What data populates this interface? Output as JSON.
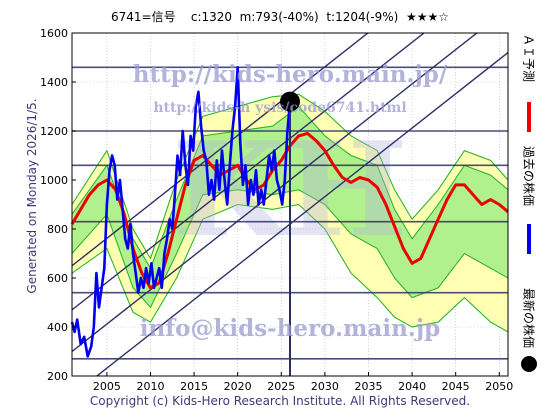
{
  "header": {
    "code": "6741=信号",
    "current": "c:1320",
    "minimum": "m:793(-40%)",
    "target": "t:1204(-9%)",
    "stars": "★★★☆"
  },
  "side_caption": "Generated on Monday 2026/1/5.",
  "footer": "Copyright (c) Kids-Hero Research Institute. All Rights Reserved.",
  "watermarks": {
    "url_top": "http://kids-hero.main.jp/",
    "url_mid": "http://kids-h     ysis/code6741.html",
    "email": "info@kids-hero.main.jp",
    "big_text": "KH"
  },
  "legend": {
    "ai_forecast": "ＡＩ予測",
    "past_price": "過去の株価",
    "latest_price": "最新の株価"
  },
  "colors": {
    "past_price": "#0000ee",
    "ai_forecast": "#ee0000",
    "latest_marker": "#000000",
    "band_outer": "#ffffb0",
    "band_inner": "#a8f08a",
    "band_lines": "#2ab52a",
    "trend_lines": "#2e2e66",
    "horizontal_lines": "#2e2e66",
    "grid": "#b8b8b8",
    "watermark": "#9a9ad0"
  },
  "chart_data": {
    "type": "line",
    "xlim": [
      2001,
      2051
    ],
    "ylim": [
      200,
      1600
    ],
    "x_ticks": [
      2005,
      2010,
      2015,
      2020,
      2025,
      2030,
      2035,
      2040,
      2045,
      2050
    ],
    "y_ticks": [
      200,
      400,
      600,
      800,
      1000,
      1200,
      1400,
      1600
    ],
    "grid": true,
    "latest": {
      "x": 2026.0,
      "y": 1320
    },
    "current_time_x": 2026.0,
    "horizontal_levels": [
      1460,
      1200,
      1060,
      830,
      540,
      270
    ],
    "trend_lines": [
      {
        "x1": 2001,
        "y1": 650,
        "x2": 2051,
        "y2": 2050
      },
      {
        "x1": 2001,
        "y1": 470,
        "x2": 2051,
        "y2": 1870
      },
      {
        "x1": 2001,
        "y1": 300,
        "x2": 2051,
        "y2": 1700
      },
      {
        "x1": 2001,
        "y1": 120,
        "x2": 2051,
        "y2": 1520
      }
    ],
    "series": [
      {
        "name": "過去の株価",
        "points": [
          [
            2001.0,
            420
          ],
          [
            2001.3,
            380
          ],
          [
            2001.6,
            430
          ],
          [
            2002.0,
            330
          ],
          [
            2002.4,
            360
          ],
          [
            2002.8,
            280
          ],
          [
            2003.2,
            320
          ],
          [
            2003.5,
            400
          ],
          [
            2003.8,
            620
          ],
          [
            2004.1,
            480
          ],
          [
            2004.4,
            560
          ],
          [
            2004.7,
            640
          ],
          [
            2005.0,
            900
          ],
          [
            2005.3,
            1040
          ],
          [
            2005.6,
            1100
          ],
          [
            2005.9,
            1060
          ],
          [
            2006.2,
            920
          ],
          [
            2006.5,
            1000
          ],
          [
            2006.8,
            880
          ],
          [
            2007.1,
            760
          ],
          [
            2007.4,
            720
          ],
          [
            2007.7,
            820
          ],
          [
            2008.0,
            700
          ],
          [
            2008.3,
            620
          ],
          [
            2008.6,
            540
          ],
          [
            2008.9,
            600
          ],
          [
            2009.2,
            560
          ],
          [
            2009.5,
            640
          ],
          [
            2009.8,
            580
          ],
          [
            2010.1,
            660
          ],
          [
            2010.4,
            560
          ],
          [
            2010.7,
            600
          ],
          [
            2011.0,
            640
          ],
          [
            2011.3,
            560
          ],
          [
            2011.6,
            700
          ],
          [
            2011.9,
            760
          ],
          [
            2012.2,
            840
          ],
          [
            2012.5,
            800
          ],
          [
            2012.8,
            940
          ],
          [
            2013.1,
            1100
          ],
          [
            2013.4,
            1020
          ],
          [
            2013.7,
            1200
          ],
          [
            2014.0,
            1060
          ],
          [
            2014.3,
            980
          ],
          [
            2014.6,
            1180
          ],
          [
            2014.9,
            1120
          ],
          [
            2015.2,
            1300
          ],
          [
            2015.5,
            1360
          ],
          [
            2015.8,
            1220
          ],
          [
            2016.1,
            1120
          ],
          [
            2016.4,
            1080
          ],
          [
            2016.7,
            940
          ],
          [
            2017.0,
            1000
          ],
          [
            2017.3,
            920
          ],
          [
            2017.6,
            1080
          ],
          [
            2017.9,
            960
          ],
          [
            2018.2,
            1120
          ],
          [
            2018.5,
            1000
          ],
          [
            2018.8,
            900
          ],
          [
            2019.1,
            1060
          ],
          [
            2019.4,
            1200
          ],
          [
            2019.7,
            1300
          ],
          [
            2020.0,
            1460
          ],
          [
            2020.3,
            1150
          ],
          [
            2020.6,
            980
          ],
          [
            2020.9,
            1060
          ],
          [
            2021.2,
            900
          ],
          [
            2021.5,
            1000
          ],
          [
            2021.8,
            940
          ],
          [
            2022.1,
            1040
          ],
          [
            2022.4,
            900
          ],
          [
            2022.7,
            960
          ],
          [
            2023.0,
            900
          ],
          [
            2023.3,
            1000
          ],
          [
            2023.6,
            1100
          ],
          [
            2023.9,
            1040
          ],
          [
            2024.2,
            1120
          ],
          [
            2024.5,
            1000
          ],
          [
            2024.8,
            960
          ],
          [
            2025.1,
            900
          ],
          [
            2025.4,
            1000
          ],
          [
            2025.7,
            1200
          ],
          [
            2026.0,
            1320
          ]
        ]
      },
      {
        "name": "ＡＩ予測",
        "points": [
          [
            2001.0,
            820
          ],
          [
            2002.0,
            880
          ],
          [
            2003.0,
            940
          ],
          [
            2004.0,
            980
          ],
          [
            2005.0,
            1000
          ],
          [
            2006.0,
            960
          ],
          [
            2007.0,
            860
          ],
          [
            2008.0,
            720
          ],
          [
            2009.0,
            620
          ],
          [
            2010.0,
            560
          ],
          [
            2011.0,
            580
          ],
          [
            2012.0,
            700
          ],
          [
            2013.0,
            840
          ],
          [
            2014.0,
            980
          ],
          [
            2015.0,
            1080
          ],
          [
            2016.0,
            1100
          ],
          [
            2017.0,
            1060
          ],
          [
            2018.0,
            1020
          ],
          [
            2019.0,
            1040
          ],
          [
            2020.0,
            1060
          ],
          [
            2021.0,
            1000
          ],
          [
            2022.0,
            960
          ],
          [
            2023.0,
            980
          ],
          [
            2024.0,
            1040
          ],
          [
            2025.0,
            1080
          ],
          [
            2026.0,
            1140
          ],
          [
            2027.0,
            1180
          ],
          [
            2028.0,
            1190
          ],
          [
            2029.0,
            1160
          ],
          [
            2030.0,
            1120
          ],
          [
            2031.0,
            1060
          ],
          [
            2032.0,
            1010
          ],
          [
            2033.0,
            990
          ],
          [
            2034.0,
            1010
          ],
          [
            2035.0,
            1000
          ],
          [
            2036.0,
            970
          ],
          [
            2037.0,
            900
          ],
          [
            2038.0,
            810
          ],
          [
            2039.0,
            720
          ],
          [
            2040.0,
            660
          ],
          [
            2041.0,
            680
          ],
          [
            2042.0,
            760
          ],
          [
            2043.0,
            840
          ],
          [
            2044.0,
            920
          ],
          [
            2045.0,
            980
          ],
          [
            2046.0,
            980
          ],
          [
            2047.0,
            940
          ],
          [
            2048.0,
            900
          ],
          [
            2049.0,
            920
          ],
          [
            2050.0,
            900
          ],
          [
            2051.0,
            870
          ]
        ]
      }
    ],
    "band": {
      "outer_upper": [
        [
          2001,
          900
        ],
        [
          2005,
          1120
        ],
        [
          2008,
          800
        ],
        [
          2010,
          680
        ],
        [
          2013,
          1000
        ],
        [
          2016,
          1260
        ],
        [
          2020,
          1300
        ],
        [
          2024,
          1340
        ],
        [
          2027,
          1350
        ],
        [
          2030,
          1280
        ],
        [
          2033,
          1180
        ],
        [
          2036,
          1120
        ],
        [
          2038,
          960
        ],
        [
          2040,
          840
        ],
        [
          2043,
          960
        ],
        [
          2046,
          1120
        ],
        [
          2049,
          1080
        ],
        [
          2051,
          1000
        ]
      ],
      "outer_lower": [
        [
          2001,
          620
        ],
        [
          2005,
          720
        ],
        [
          2008,
          460
        ],
        [
          2010,
          420
        ],
        [
          2013,
          600
        ],
        [
          2016,
          840
        ],
        [
          2020,
          900
        ],
        [
          2024,
          880
        ],
        [
          2027,
          900
        ],
        [
          2030,
          800
        ],
        [
          2033,
          620
        ],
        [
          2036,
          520
        ],
        [
          2038,
          440
        ],
        [
          2040,
          400
        ],
        [
          2043,
          420
        ],
        [
          2046,
          520
        ],
        [
          2049,
          420
        ],
        [
          2051,
          380
        ]
      ],
      "inner_upper": [
        [
          2001,
          860
        ],
        [
          2005,
          1060
        ],
        [
          2008,
          760
        ],
        [
          2010,
          640
        ],
        [
          2013,
          920
        ],
        [
          2016,
          1180
        ],
        [
          2020,
          1200
        ],
        [
          2024,
          1220
        ],
        [
          2027,
          1300
        ],
        [
          2030,
          1180
        ],
        [
          2033,
          1100
        ],
        [
          2036,
          1060
        ],
        [
          2038,
          880
        ],
        [
          2040,
          760
        ],
        [
          2043,
          900
        ],
        [
          2046,
          1060
        ],
        [
          2049,
          1020
        ],
        [
          2051,
          960
        ]
      ],
      "inner_lower": [
        [
          2001,
          700
        ],
        [
          2005,
          860
        ],
        [
          2008,
          560
        ],
        [
          2010,
          480
        ],
        [
          2013,
          700
        ],
        [
          2016,
          940
        ],
        [
          2020,
          960
        ],
        [
          2024,
          940
        ],
        [
          2027,
          960
        ],
        [
          2030,
          900
        ],
        [
          2033,
          780
        ],
        [
          2036,
          720
        ],
        [
          2038,
          600
        ],
        [
          2040,
          520
        ],
        [
          2043,
          560
        ],
        [
          2046,
          700
        ],
        [
          2049,
          640
        ],
        [
          2051,
          600
        ]
      ]
    }
  }
}
